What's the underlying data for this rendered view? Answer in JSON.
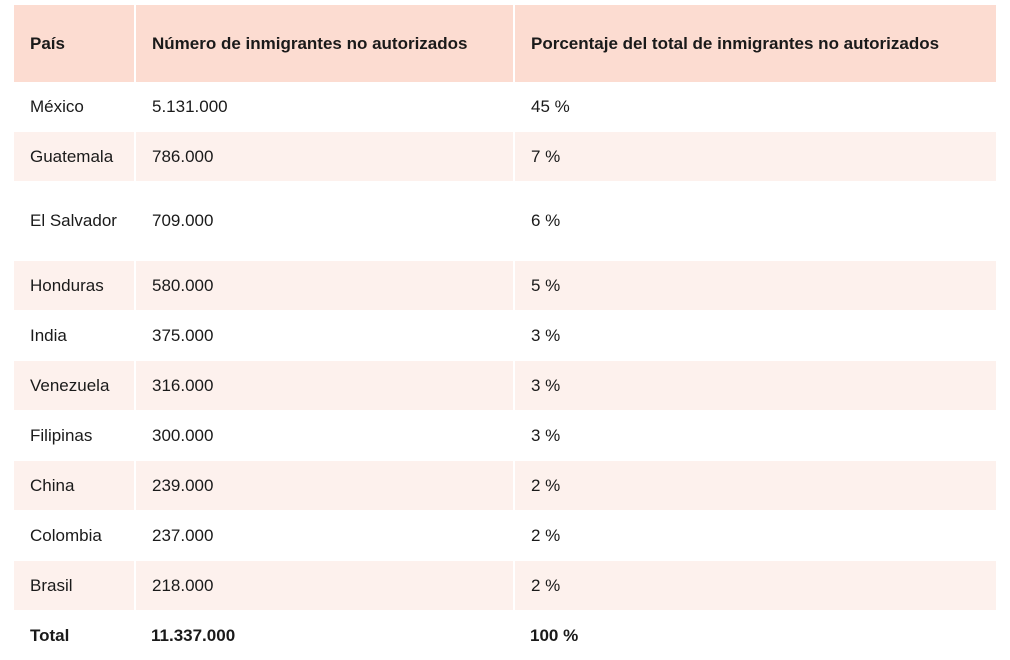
{
  "table": {
    "headers": [
      "País",
      "Número de inmigrantes no autorizados",
      "Porcentaje del total de inmigrantes no autorizados"
    ],
    "rows": [
      {
        "country": "México",
        "count": "5.131.000",
        "percent": "45 %"
      },
      {
        "country": "Guatemala",
        "count": "786.000",
        "percent": "7 %"
      },
      {
        "country": "El Salvador",
        "count": "709.000",
        "percent": "6 %"
      },
      {
        "country": "Honduras",
        "count": "580.000",
        "percent": "5 %"
      },
      {
        "country": "India",
        "count": "375.000",
        "percent": "3 %"
      },
      {
        "country": "Venezuela",
        "count": "316.000",
        "percent": "3 %"
      },
      {
        "country": "Filipinas",
        "count": "300.000",
        "percent": "3 %"
      },
      {
        "country": "China",
        "count": "239.000",
        "percent": "2 %"
      },
      {
        "country": "Colombia",
        "count": "237.000",
        "percent": "2 %"
      },
      {
        "country": "Brasil",
        "count": "218.000",
        "percent": "2 %"
      }
    ],
    "total": {
      "label": "Total",
      "count": "11.337.000",
      "percent": "100 %"
    }
  },
  "colors": {
    "header_bg": "#fcdcd1",
    "stripe_bg": "#fdf1ed"
  }
}
